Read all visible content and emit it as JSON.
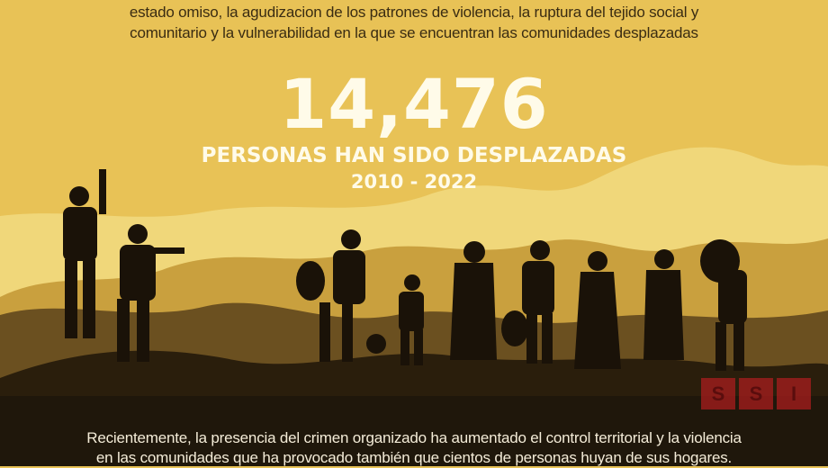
{
  "intro_text": [
    "estado omiso, la agudizacion de los patrones de violencia, la ruptura del tejido social y",
    "comunitario y la vulnerabilidad en la que se encuentran las comunidades desplazadas"
  ],
  "headline_number": "14,476",
  "headline_label": "PERSONAS HAN SIDO DESPLAZADAS",
  "period": "2010 - 2022",
  "outro_text": [
    "Recientemente, la presencia del crimen organizado ha aumentado el control territorial y la violencia",
    "en las comunidades que ha provocado también que cientos de personas huyan de sus hogares."
  ],
  "logo": {
    "letters": [
      "S",
      "S",
      "I"
    ],
    "color": "#aa1e1e"
  },
  "colors": {
    "sky": "#e8c256",
    "far_hills": "#f0d77a",
    "mid_hills": "#c9a03e",
    "dark_hills": "#6b5020",
    "ground": "#1f170b"
  }
}
